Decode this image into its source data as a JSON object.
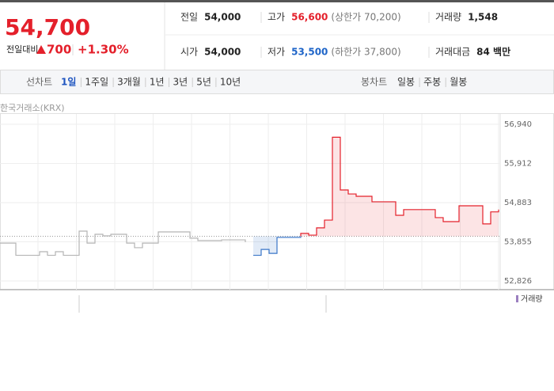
{
  "header": {
    "price": "54,700",
    "change_label": "전일대비",
    "change": "700",
    "change_pct": "+1.30%"
  },
  "stats": [
    [
      {
        "label": "전일",
        "value": "54,000"
      },
      {
        "label": "고가",
        "value": "56,600",
        "note": "(상한가 70,200)"
      },
      {
        "label": "거래량",
        "value": "1,548"
      }
    ],
    [
      {
        "label": "시가",
        "value": "54,000"
      },
      {
        "label": "저가",
        "value": "53,500",
        "note": "(하한가 37,800)"
      },
      {
        "label": "거래대금",
        "value": "84 백만"
      }
    ]
  ],
  "tabs": {
    "label": "선차트",
    "items": [
      "1일",
      "1주일",
      "3개월",
      "1년",
      "3년",
      "5년",
      "10년"
    ],
    "active": 0
  },
  "candle_tabs": {
    "label": "봉차트",
    "items": [
      "일봉",
      "주봉",
      "월봉"
    ]
  },
  "chart_data": {
    "type": "line",
    "source": "한국거래소(KRX)",
    "volume_label": "거래량",
    "ylim": [
      52826,
      56940
    ],
    "yticks": [
      {
        "value": 52826,
        "label": "52,826"
      },
      {
        "value": 53855,
        "label": "53,855"
      },
      {
        "value": 54883,
        "label": "54,883"
      },
      {
        "value": 55912,
        "label": "55,912"
      },
      {
        "value": 56940,
        "label": "56,940"
      }
    ],
    "baseline": 54000,
    "grid": true,
    "series": [
      {
        "color": "#b4b4b4",
        "values": [
          53820,
          53820,
          53500,
          53500,
          53500,
          53595,
          53500,
          53595,
          53500,
          53500,
          54135,
          53820,
          54052,
          54010,
          54052,
          54052,
          53820,
          53700,
          53820,
          53820,
          54115,
          54115,
          54115,
          54115,
          53950,
          53885,
          53885,
          53885,
          53905,
          53905,
          53905,
          53845,
          null,
          null,
          null,
          null,
          null,
          null,
          null,
          null,
          null,
          null,
          null,
          null,
          null,
          null,
          null,
          null,
          null,
          null,
          null,
          null,
          null,
          null,
          null,
          null,
          null,
          null,
          null,
          null,
          null,
          null,
          null,
          null
        ]
      },
      {
        "color": "#e4202b",
        "color_below": "#3a76c8",
        "values": [
          null,
          null,
          null,
          null,
          null,
          null,
          null,
          null,
          null,
          null,
          null,
          null,
          null,
          null,
          null,
          null,
          null,
          null,
          null,
          null,
          null,
          null,
          null,
          null,
          null,
          null,
          null,
          null,
          null,
          null,
          null,
          null,
          53500,
          53655,
          53550,
          53970,
          53970,
          53970,
          54075,
          54030,
          54220,
          54425,
          56600,
          55215,
          55110,
          55050,
          55050,
          54905,
          54905,
          54905,
          54550,
          54700,
          54700,
          54700,
          54700,
          54490,
          54385,
          54385,
          54800,
          54800,
          54800,
          54325,
          54640,
          54700
        ]
      }
    ]
  }
}
